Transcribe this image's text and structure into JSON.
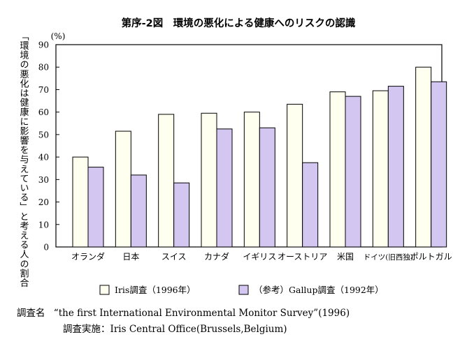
{
  "chart_data": {
    "type": "bar",
    "title": "第序-2図　環境の悪化による健康へのリスクの認識",
    "ylabel": "「環境の悪化は健康に影響を与えている」と考える人の割合",
    "yunit": "(%)",
    "ylim": [
      0,
      90
    ],
    "yticks": [
      0,
      10,
      20,
      30,
      40,
      50,
      60,
      70,
      80,
      90
    ],
    "categories": [
      "オランダ",
      "日本",
      "スイス",
      "カナダ",
      "イギリス",
      "オーストリア",
      "米国",
      "ドイツ(旧西独)",
      "ポルトガル"
    ],
    "series": [
      {
        "name": "Iris調査（1996年）",
        "color": "#fffff0",
        "values": [
          40,
          51.5,
          59,
          59.5,
          60,
          63.5,
          69,
          69.5,
          80
        ]
      },
      {
        "name": "（参考）Gallup調査（1992年）",
        "color": "#d3c6f0",
        "values": [
          35.5,
          32,
          28.5,
          52.5,
          53,
          37.5,
          67,
          71.5,
          73.5
        ]
      }
    ],
    "grid": false,
    "legend": "bottom"
  },
  "source": {
    "line1_label": "調査名",
    "line1_text": "“the first International Environmental Monitor Survey”(1996)",
    "line2_text": "調査実施：Iris Central Office(Brussels,Belgium)"
  }
}
